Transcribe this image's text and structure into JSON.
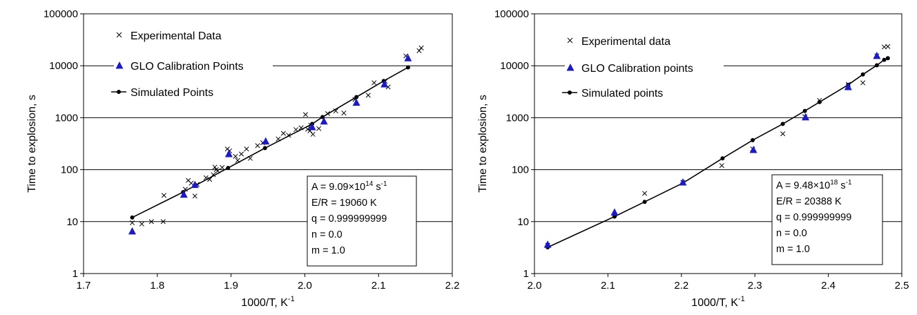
{
  "chart_data": [
    {
      "type": "scatter",
      "title": "",
      "xlabel": "1000/T, K",
      "xlabel_sup": "-1",
      "ylabel": "Time to explosion, s",
      "xlim": [
        1.7,
        2.2
      ],
      "ylim": [
        1,
        100000
      ],
      "yscale": "log",
      "grid": "horizontal",
      "legend_position": "top-left",
      "x_ticks": [
        "1.7",
        "1.8",
        "1.9",
        "2.0",
        "2.1",
        "2.2"
      ],
      "y_ticks": [
        "1",
        "10",
        "100",
        "1000",
        "10000",
        "100000"
      ],
      "series": [
        {
          "name": "Experimental Data",
          "marker": "x",
          "color": "#000000",
          "x": [
            1.766,
            1.779,
            1.792,
            1.808,
            1.809,
            1.838,
            1.842,
            1.846,
            1.851,
            1.854,
            1.866,
            1.871,
            1.876,
            1.878,
            1.88,
            1.882,
            1.888,
            1.895,
            1.898,
            1.906,
            1.909,
            1.914,
            1.921,
            1.926,
            1.936,
            1.943,
            1.964,
            1.971,
            1.978,
            1.988,
            1.995,
            2.001,
            2.004,
            2.007,
            2.008,
            2.011,
            2.019,
            2.031,
            2.042,
            2.053,
            2.068,
            2.086,
            2.094,
            2.109,
            2.113,
            2.137,
            2.155,
            2.158
          ],
          "y": [
            9.5,
            9,
            10,
            10,
            32,
            42,
            62,
            55,
            31,
            52,
            70,
            65,
            80,
            112,
            100,
            95,
            110,
            250,
            230,
            180,
            150,
            200,
            250,
            165,
            290,
            330,
            390,
            500,
            460,
            590,
            640,
            1150,
            600,
            560,
            720,
            480,
            620,
            1200,
            1350,
            1230,
            2250,
            2700,
            4700,
            5000,
            3900,
            15500,
            19500,
            22000
          ]
        },
        {
          "name": "GLO Calibration Points",
          "marker": "triangle",
          "color": "#1a1acc",
          "x": [
            1.766,
            1.836,
            1.851,
            1.897,
            1.947,
            2.01,
            2.026,
            2.07,
            2.108,
            2.14
          ],
          "y": [
            6.5,
            33,
            51,
            200,
            350,
            660,
            850,
            1950,
            4400,
            14000
          ]
        },
        {
          "name": "Simulated Points",
          "marker": "line-dot",
          "color": "#000000",
          "x": [
            1.766,
            1.835,
            1.896,
            1.946,
            2.01,
            2.024,
            2.07,
            2.107,
            2.14
          ],
          "y": [
            12,
            37,
            108,
            260,
            760,
            1030,
            2500,
            5100,
            9300
          ]
        }
      ],
      "annotation": {
        "A_prefix": "A = 9.09×10",
        "A_exp": "14",
        "A_unit": " s",
        "A_unit_sup": "-1",
        "lines": [
          "E/R = 19060 K",
          "q = 0.999999999",
          "n = 0.0",
          "m = 1.0"
        ]
      }
    },
    {
      "type": "scatter",
      "title": "",
      "xlabel": "1000/T, K",
      "xlabel_sup": "-1",
      "ylabel": "Time to explosion, s",
      "xlim": [
        2.0,
        2.5
      ],
      "ylim": [
        1,
        100000
      ],
      "yscale": "log",
      "grid": "horizontal",
      "legend_position": "top-left",
      "x_ticks": [
        "2.0",
        "2.1",
        "2.2",
        "2.3",
        "2.4",
        "2.5"
      ],
      "y_ticks": [
        "1",
        "10",
        "100",
        "1000",
        "10000",
        "100000"
      ],
      "series": [
        {
          "name": "Experimental data",
          "marker": "x",
          "color": "#000000",
          "x": [
            2.018,
            2.109,
            2.15,
            2.202,
            2.255,
            2.297,
            2.338,
            2.368,
            2.388,
            2.427,
            2.447,
            2.466,
            2.476,
            2.481
          ],
          "y": [
            3.5,
            13.5,
            35,
            57,
            120,
            250,
            490,
            1050,
            2150,
            4400,
            4700,
            15500,
            23000,
            23500
          ]
        },
        {
          "name": "GLO Calibration points",
          "marker": "triangle",
          "color": "#1a1acc",
          "x": [
            2.018,
            2.109,
            2.202,
            2.298,
            2.369,
            2.427,
            2.466
          ],
          "y": [
            3.6,
            15,
            57,
            240,
            1020,
            3900,
            15500
          ]
        },
        {
          "name": "Simulated points",
          "marker": "line-dot",
          "color": "#000000",
          "x": [
            2.018,
            2.109,
            2.15,
            2.202,
            2.256,
            2.297,
            2.338,
            2.368,
            2.388,
            2.427,
            2.447,
            2.466,
            2.476,
            2.481
          ],
          "y": [
            3.2,
            12.5,
            24,
            55,
            165,
            370,
            760,
            1350,
            2000,
            4300,
            6800,
            10200,
            13000,
            14000
          ]
        }
      ],
      "annotation": {
        "A_prefix": "A = 9.48×10",
        "A_exp": "18",
        "A_unit": " s",
        "A_unit_sup": "-1",
        "lines": [
          "E/R = 20388 K",
          "q = 0.999999999",
          "n = 0.0",
          "m = 1.0"
        ]
      }
    }
  ]
}
